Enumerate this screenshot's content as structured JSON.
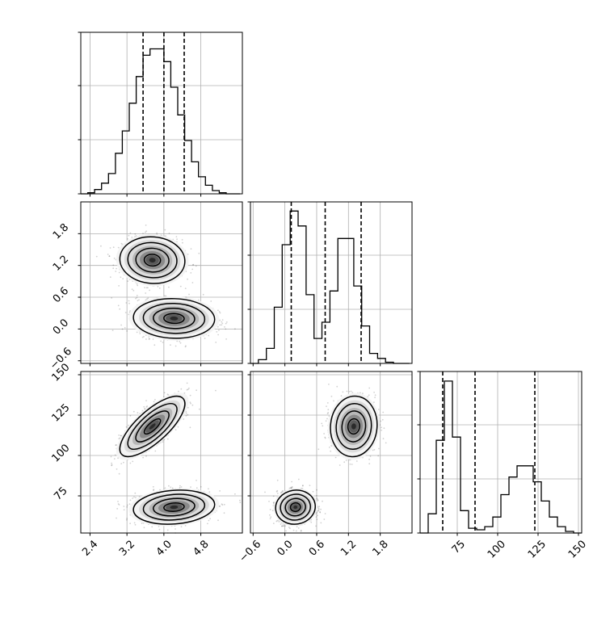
{
  "chart_data": {
    "type": "corner",
    "parameters": [
      {
        "range": [
          2.2,
          5.7
        ],
        "ticks": [
          "2.4",
          "3.2",
          "4.0",
          "4.8"
        ],
        "tick_values": [
          2.4,
          3.2,
          4.0,
          4.8
        ]
      },
      {
        "range": [
          -0.65,
          2.4
        ],
        "ticks": [
          "−0.6",
          "0.0",
          "0.6",
          "1.2",
          "1.8"
        ],
        "tick_values": [
          -0.6,
          0.0,
          0.6,
          1.2,
          1.8
        ]
      },
      {
        "range": [
          52,
          152
        ],
        "ticks": [
          "75",
          "100",
          "125",
          "150"
        ],
        "tick_values": [
          75,
          100,
          125,
          150
        ]
      }
    ],
    "quantiles": [
      [
        3.55,
        4.0,
        4.44
      ],
      [
        0.12,
        0.76,
        1.44
      ],
      [
        66,
        86,
        123
      ]
    ],
    "histograms": [
      {
        "bin_edges": [
          2.2,
          2.35,
          2.5,
          2.65,
          2.8,
          2.95,
          3.1,
          3.25,
          3.4,
          3.55,
          3.7,
          3.85,
          4.0,
          4.15,
          4.3,
          4.45,
          4.6,
          4.75,
          4.9,
          5.05,
          5.2,
          5.35,
          5.5,
          5.65
        ],
        "counts": [
          0,
          1,
          4,
          10,
          19,
          38,
          59,
          85,
          110,
          130,
          136,
          136,
          124,
          100,
          74,
          50,
          30,
          16,
          8,
          3,
          1,
          0,
          0
        ],
        "ymax": 150
      },
      {
        "bin_edges": [
          -0.65,
          -0.5,
          -0.35,
          -0.2,
          -0.05,
          0.1,
          0.25,
          0.4,
          0.55,
          0.7,
          0.85,
          1.0,
          1.15,
          1.3,
          1.45,
          1.6,
          1.75,
          1.9,
          2.05,
          2.2,
          2.35
        ],
        "counts": [
          0,
          3,
          12,
          45,
          95,
          122,
          110,
          55,
          20,
          33,
          58,
          100,
          100,
          62,
          30,
          8,
          4,
          1,
          0,
          0
        ],
        "ymax": 128
      },
      {
        "bin_edges": [
          52,
          57,
          62,
          67,
          72,
          77,
          82,
          87,
          92,
          97,
          102,
          107,
          112,
          117,
          122,
          127,
          132,
          137,
          142,
          147,
          152
        ],
        "counts": [
          0,
          12,
          58,
          95,
          60,
          14,
          3,
          2,
          4,
          10,
          24,
          35,
          42,
          42,
          32,
          20,
          10,
          4,
          1,
          0
        ],
        "ymax": 100
      }
    ],
    "modes": [
      {
        "x": 3.8,
        "y": 1.3,
        "z": 120
      },
      {
        "x": 4.2,
        "y": 0.18,
        "z": 68
      }
    ]
  }
}
